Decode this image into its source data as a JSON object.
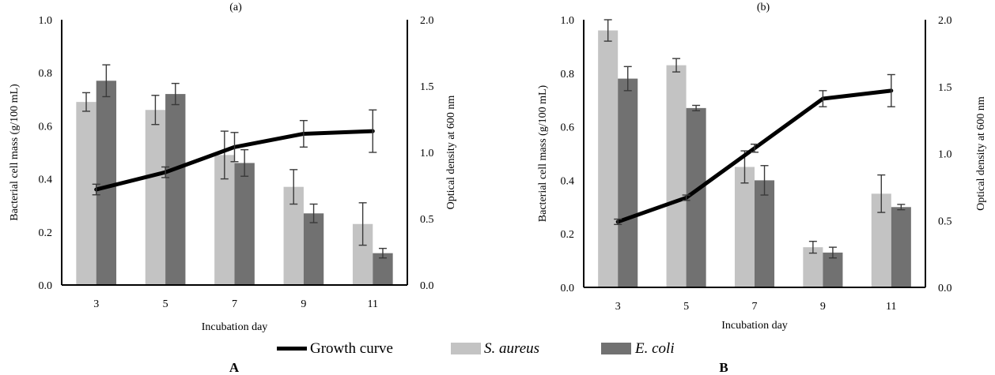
{
  "legend": {
    "items": [
      {
        "label": "Growth curve",
        "italic": false,
        "kind": "line",
        "color": "#000000"
      },
      {
        "label": "S. aureus",
        "italic": true,
        "kind": "bar",
        "color": "#c3c3c3"
      },
      {
        "label": "E. coli",
        "italic": true,
        "kind": "bar",
        "color": "#717171"
      }
    ]
  },
  "chart_data": [
    {
      "type": "bar",
      "panel": "A",
      "title_fragment": "(a)",
      "categories": [
        "3",
        "5",
        "7",
        "9",
        "11"
      ],
      "xlabel": "Incubation day",
      "ylabel": "Bacterial cell mass (g/100 mL)",
      "y2label": "Optical density at 600 nm",
      "ylim": [
        0,
        1.0
      ],
      "y2lim": [
        0,
        2.0
      ],
      "yticks": [
        "0.0",
        "0.2",
        "0.4",
        "0.6",
        "0.8",
        "1.0"
      ],
      "y2ticks": [
        "0.0",
        "0.5",
        "1.0",
        "1.5",
        "2.0"
      ],
      "series": [
        {
          "name": "S. aureus",
          "axis": "left",
          "kind": "bar",
          "color": "#c3c3c3",
          "values": [
            0.69,
            0.66,
            0.49,
            0.37,
            0.23
          ],
          "errors": [
            0.035,
            0.055,
            0.09,
            0.065,
            0.08
          ]
        },
        {
          "name": "E. coli",
          "axis": "left",
          "kind": "bar",
          "color": "#717171",
          "values": [
            0.77,
            0.72,
            0.46,
            0.27,
            0.12
          ],
          "errors": [
            0.06,
            0.04,
            0.05,
            0.035,
            0.018
          ]
        },
        {
          "name": "Growth curve",
          "axis": "right",
          "kind": "line",
          "color": "#000000",
          "values": [
            0.72,
            0.85,
            1.04,
            1.14,
            1.16
          ],
          "errors": [
            0.04,
            0.04,
            0.11,
            0.1,
            0.16
          ]
        }
      ]
    },
    {
      "type": "bar",
      "panel": "B",
      "title_fragment": "(b)",
      "categories": [
        "3",
        "5",
        "7",
        "9",
        "11"
      ],
      "xlabel": "Incubation day",
      "ylabel": "Bacterial cell mass (g/100 mL)",
      "y2label": "Optical density at 600 nm",
      "ylim": [
        0,
        1.0
      ],
      "y2lim": [
        0,
        2.0
      ],
      "yticks": [
        "0.0",
        "0.2",
        "0.4",
        "0.6",
        "0.8",
        "1.0"
      ],
      "y2ticks": [
        "0.0",
        "0.5",
        "1.0",
        "1.5",
        "2.0"
      ],
      "series": [
        {
          "name": "S. aureus",
          "axis": "left",
          "kind": "bar",
          "color": "#c3c3c3",
          "values": [
            0.96,
            0.83,
            0.45,
            0.15,
            0.35
          ],
          "errors": [
            0.04,
            0.025,
            0.06,
            0.022,
            0.07
          ]
        },
        {
          "name": "E. coli",
          "axis": "left",
          "kind": "bar",
          "color": "#717171",
          "values": [
            0.78,
            0.67,
            0.4,
            0.13,
            0.3
          ],
          "errors": [
            0.045,
            0.01,
            0.055,
            0.02,
            0.01
          ]
        },
        {
          "name": "Growth curve",
          "axis": "right",
          "kind": "line",
          "color": "#000000",
          "values": [
            0.49,
            0.67,
            1.04,
            1.41,
            1.47
          ],
          "errors": [
            0.02,
            0.02,
            0.03,
            0.06,
            0.12
          ]
        }
      ]
    }
  ]
}
